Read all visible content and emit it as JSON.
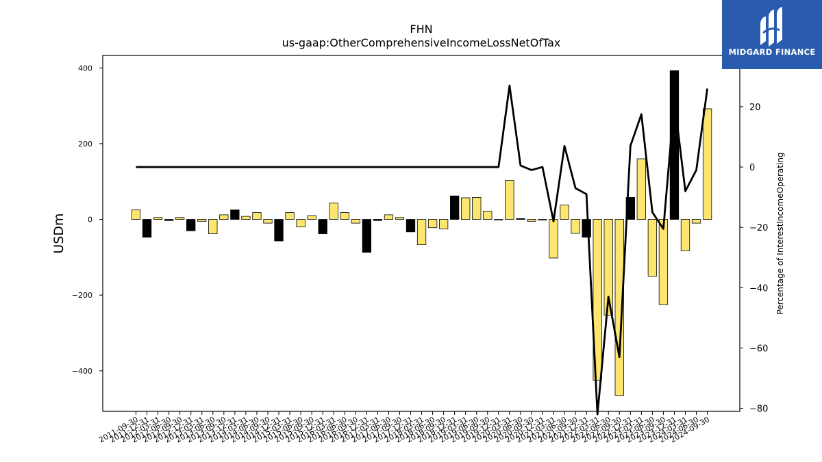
{
  "logo": {
    "text": "MIDGARD FINANCE"
  },
  "chart_data": {
    "type": "bar",
    "title": "FHN",
    "subtitle": "us-gaap:OtherComprehensiveIncomeLossNetOfTax",
    "ylabel": "USDm",
    "y2label": "Percentage of InterestIncomeOperating",
    "ylim": [
      -507,
      433
    ],
    "y2lim": [
      -81,
      37
    ],
    "yticks": [
      -400,
      -200,
      0,
      200,
      400
    ],
    "y2ticks": [
      -80,
      -60,
      -40,
      -20,
      0,
      20
    ],
    "ytick_labels": [
      "−400",
      "−200",
      "0",
      "200",
      "400"
    ],
    "y2tick_labels": [
      "−80",
      "−60",
      "−40",
      "−20",
      "0",
      "20"
    ],
    "colors": {
      "positive": "#fde66f",
      "negative": "#fde66f",
      "highlight": "#000000",
      "line": "#000000"
    },
    "categories": [
      "2011-09-30",
      "2011-12-31",
      "2012-03-31",
      "2012-06-30",
      "2012-09-30",
      "2012-12-31",
      "2013-03-31",
      "2013-06-30",
      "2013-09-30",
      "2013-12-31",
      "2014-03-31",
      "2014-06-30",
      "2014-09-30",
      "2014-12-31",
      "2015-03-31",
      "2015-06-30",
      "2015-09-30",
      "2015-12-31",
      "2016-03-31",
      "2016-06-30",
      "2016-09-30",
      "2016-12-31",
      "2017-03-31",
      "2017-06-30",
      "2017-09-30",
      "2017-12-31",
      "2018-03-31",
      "2018-06-30",
      "2018-09-30",
      "2018-12-31",
      "2019-03-31",
      "2019-06-30",
      "2019-09-30",
      "2019-12-31",
      "2020-03-31",
      "2020-06-30",
      "2020-09-30",
      "2020-12-31",
      "2021-03-31",
      "2021-06-30",
      "2021-09-30",
      "2021-12-31",
      "2022-03-31",
      "2022-06-30",
      "2022-09-30",
      "2022-12-31",
      "2023-03-31",
      "2023-06-30",
      "2023-09-30",
      "2023-12-31",
      "2024-03-31",
      "2024-06-30",
      "2024-09-30"
    ],
    "series": [
      {
        "kind": "bar",
        "values": [
          25,
          -47,
          5,
          -3,
          5,
          -30,
          -5,
          -38,
          12,
          25,
          8,
          18,
          -10,
          -57,
          18,
          -20,
          10,
          -38,
          43,
          18,
          -10,
          -87,
          -3,
          12,
          5,
          -33,
          -67,
          -22,
          -25,
          62,
          57,
          58,
          22,
          0,
          103,
          2,
          -5,
          -2,
          -102,
          38,
          -37,
          -47,
          -425,
          -253,
          -465,
          58,
          160,
          -150,
          -225,
          393,
          -83,
          -10,
          292
        ],
        "highlight": [
          false,
          true,
          false,
          true,
          false,
          true,
          false,
          false,
          false,
          true,
          false,
          false,
          false,
          true,
          false,
          false,
          false,
          true,
          false,
          false,
          false,
          true,
          true,
          false,
          false,
          true,
          false,
          false,
          false,
          true,
          false,
          false,
          false,
          false,
          false,
          true,
          false,
          false,
          false,
          false,
          false,
          true,
          false,
          false,
          false,
          true,
          false,
          false,
          false,
          true,
          false,
          false,
          false
        ]
      },
      {
        "kind": "line",
        "values": [
          0,
          0,
          0,
          0,
          0,
          0,
          0,
          0,
          0,
          0,
          0,
          0,
          0,
          0,
          0,
          0,
          0,
          0,
          0,
          0,
          0,
          0,
          0,
          0,
          0,
          0,
          0,
          0,
          0,
          0,
          0,
          0,
          0,
          0,
          27,
          0.5,
          -1,
          0,
          -18,
          7,
          -7,
          -9,
          -82,
          -43,
          -63,
          7,
          17.5,
          -15,
          -20.5,
          22,
          -8,
          -1,
          26
        ]
      }
    ]
  }
}
